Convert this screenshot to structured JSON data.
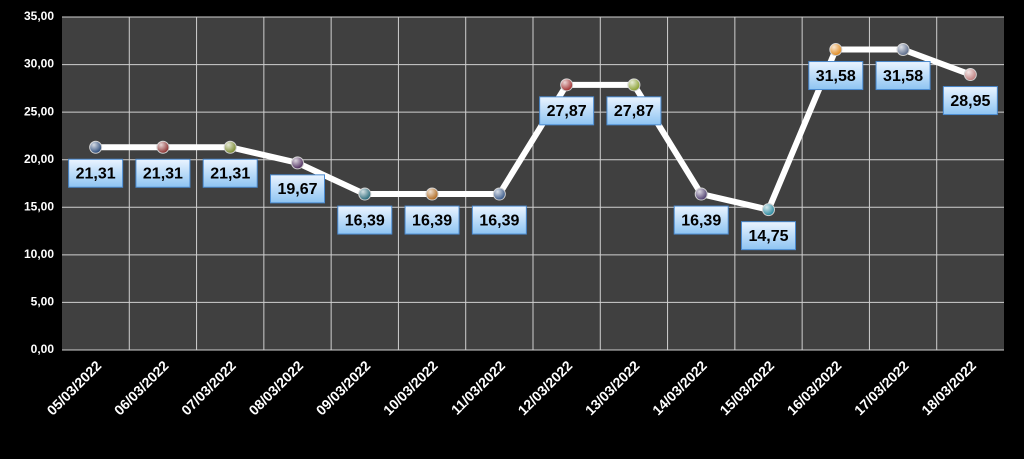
{
  "chart_data": {
    "type": "line",
    "categories": [
      "05/03/2022",
      "06/03/2022",
      "07/03/2022",
      "08/03/2022",
      "09/03/2022",
      "10/03/2022",
      "11/03/2022",
      "12/03/2022",
      "13/03/2022",
      "14/03/2022",
      "15/03/2022",
      "16/03/2022",
      "17/03/2022",
      "18/03/2022"
    ],
    "values": [
      21.31,
      21.31,
      21.31,
      19.67,
      16.39,
      16.39,
      16.39,
      27.87,
      27.87,
      16.39,
      14.75,
      31.58,
      31.58,
      28.95
    ],
    "value_labels": [
      "21,31",
      "21,31",
      "21,31",
      "19,67",
      "16,39",
      "16,39",
      "16,39",
      "27,87",
      "27,87",
      "16,39",
      "14,75",
      "31,58",
      "31,58",
      "28,95"
    ],
    "color": "#ffffff",
    "marker_colors": [
      "#2a4a7a",
      "#8a3030",
      "#7a8a30",
      "#503060",
      "#2a6a7a",
      "#b06a20",
      "#3a5a8a",
      "#a03030",
      "#8aa030",
      "#504070",
      "#2a8aa0",
      "#e08a20",
      "#5a6a8a",
      "#c08080"
    ],
    "ylim": [
      0,
      35
    ],
    "yticks": [
      {
        "value": 0,
        "label": "0,00"
      },
      {
        "value": 5,
        "label": "5,00"
      },
      {
        "value": 10,
        "label": "10,00"
      },
      {
        "value": 15,
        "label": "15,00"
      },
      {
        "value": 20,
        "label": "20,00"
      },
      {
        "value": 25,
        "label": "25,00"
      },
      {
        "value": 30,
        "label": "30,00"
      },
      {
        "value": 35,
        "label": "35,00"
      }
    ],
    "grid": true
  }
}
